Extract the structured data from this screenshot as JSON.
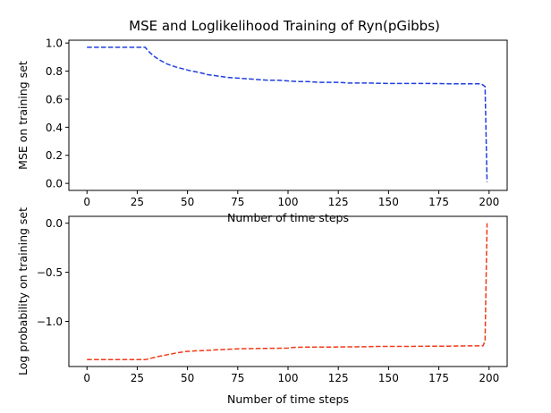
{
  "figure": {
    "title": "MSE and Loglikelihood Training of Ryn(pGibbs)"
  },
  "chart_data": [
    {
      "type": "line",
      "title": "MSE and Loglikelihood Training of Ryn(pGibbs)",
      "xlabel": "Number of time steps",
      "ylabel": "MSE on training set",
      "xlim": [
        -9,
        209
      ],
      "ylim": [
        -0.05,
        1.02
      ],
      "xticks": [
        0,
        25,
        50,
        75,
        100,
        125,
        150,
        175,
        200
      ],
      "yticks": [
        0.0,
        0.2,
        0.4,
        0.6,
        0.8,
        1.0
      ],
      "ytick_labels": [
        "0.0",
        "0.2",
        "0.4",
        "0.6",
        "0.8",
        "1.0"
      ],
      "grid": false,
      "series": [
        {
          "color": "#1f3fe0",
          "linestyle": "dashed",
          "x": [
            0,
            29,
            30,
            33,
            36,
            40,
            44,
            48,
            52,
            56,
            60,
            65,
            70,
            75,
            80,
            85,
            90,
            95,
            100,
            105,
            110,
            115,
            120,
            125,
            130,
            140,
            150,
            160,
            170,
            180,
            190,
            196,
            198,
            199
          ],
          "y": [
            0.97,
            0.97,
            0.95,
            0.91,
            0.88,
            0.85,
            0.83,
            0.815,
            0.8,
            0.79,
            0.775,
            0.765,
            0.755,
            0.75,
            0.745,
            0.74,
            0.735,
            0.735,
            0.73,
            0.725,
            0.725,
            0.72,
            0.72,
            0.72,
            0.715,
            0.715,
            0.712,
            0.712,
            0.712,
            0.71,
            0.71,
            0.71,
            0.69,
            0.01
          ]
        }
      ]
    },
    {
      "type": "line",
      "title": "",
      "xlabel": "Number of time steps",
      "ylabel": "Log probability on training set",
      "xlim": [
        -9,
        209
      ],
      "ylim": [
        -1.46,
        0.07
      ],
      "xticks": [
        0,
        25,
        50,
        75,
        100,
        125,
        150,
        175,
        200
      ],
      "yticks": [
        -1.0,
        -0.5,
        0.0
      ],
      "ytick_labels": [
        "−1.0",
        "−0.5",
        "0.0"
      ],
      "grid": false,
      "series": [
        {
          "color": "#f03a17",
          "linestyle": "dashed",
          "x": [
            0,
            29,
            30,
            35,
            40,
            45,
            50,
            55,
            60,
            65,
            70,
            75,
            80,
            90,
            100,
            103,
            110,
            120,
            130,
            140,
            145,
            150,
            160,
            170,
            180,
            190,
            197,
            198,
            199
          ],
          "y": [
            -1.39,
            -1.39,
            -1.385,
            -1.36,
            -1.34,
            -1.32,
            -1.305,
            -1.3,
            -1.295,
            -1.29,
            -1.285,
            -1.28,
            -1.278,
            -1.275,
            -1.272,
            -1.265,
            -1.262,
            -1.262,
            -1.26,
            -1.258,
            -1.255,
            -1.255,
            -1.255,
            -1.253,
            -1.252,
            -1.25,
            -1.25,
            -1.2,
            0.0
          ]
        }
      ]
    }
  ]
}
